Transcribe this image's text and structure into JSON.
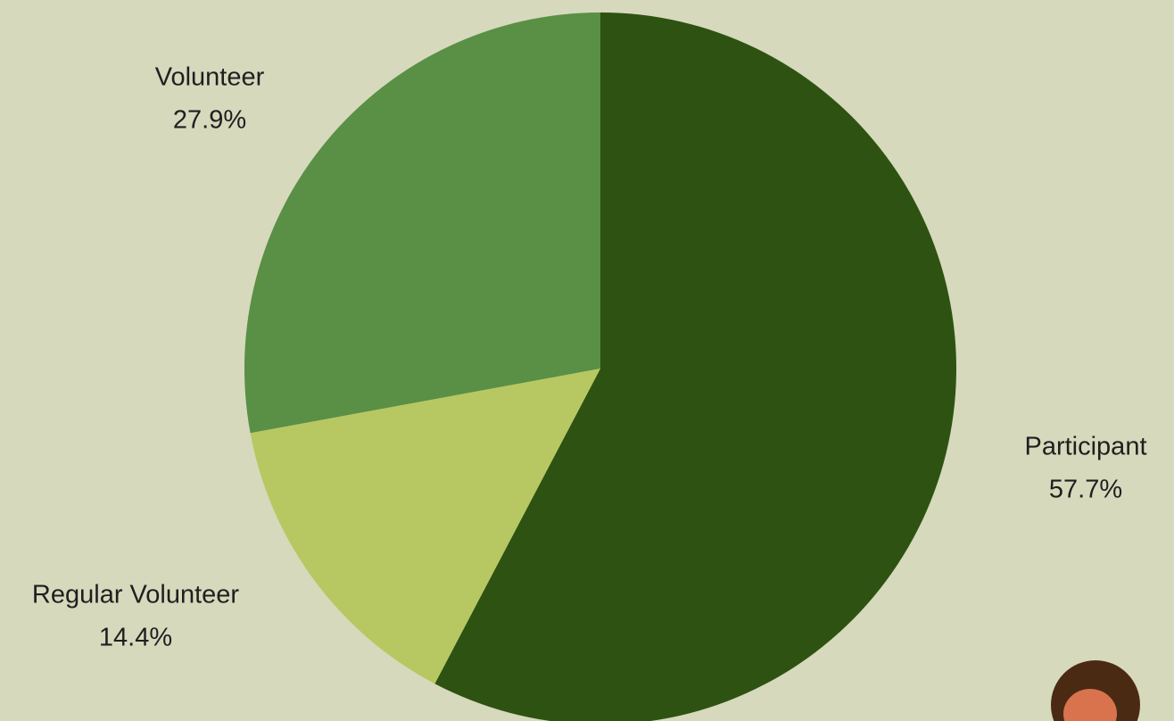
{
  "chart_data": {
    "type": "pie",
    "categories": [
      "Participant",
      "Regular Volunteer",
      "Volunteer"
    ],
    "values": [
      57.7,
      14.4,
      27.9
    ],
    "value_labels": [
      "57.7%",
      "14.4%",
      "27.9%"
    ],
    "colors": [
      "#2e5212",
      "#b7c862",
      "#5a8f46"
    ]
  }
}
